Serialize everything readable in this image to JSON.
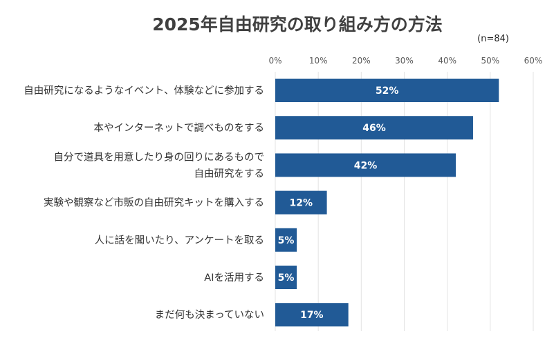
{
  "chart_data": {
    "type": "bar",
    "orientation": "horizontal",
    "title": "2025年自由研究の取り組み方の方法",
    "sample_note": "(n=84)",
    "xlim": [
      0,
      60
    ],
    "x_ticks": [
      0,
      10,
      20,
      30,
      40,
      50,
      60
    ],
    "x_tick_labels": [
      "0%",
      "10%",
      "20%",
      "30%",
      "40%",
      "50%",
      "60%"
    ],
    "grid": true,
    "bar_color": "#215a96",
    "categories": [
      [
        "自由研究になるようなイベント、体験などに参加する"
      ],
      [
        "本やインターネットで調べものをする"
      ],
      [
        "自分で道具を用意したり身の回りにあるもので",
        "自由研究をする"
      ],
      [
        "実験や観察など市販の自由研究キットを購入する"
      ],
      [
        "人に話を聞いたり、アンケートを取る"
      ],
      [
        "AIを活用する"
      ],
      [
        "まだ何も決まっていない"
      ]
    ],
    "values": [
      52,
      46,
      42,
      12,
      5,
      5,
      17
    ],
    "value_labels": [
      "52%",
      "46%",
      "42%",
      "12%",
      "5%",
      "5%",
      "17%"
    ]
  }
}
